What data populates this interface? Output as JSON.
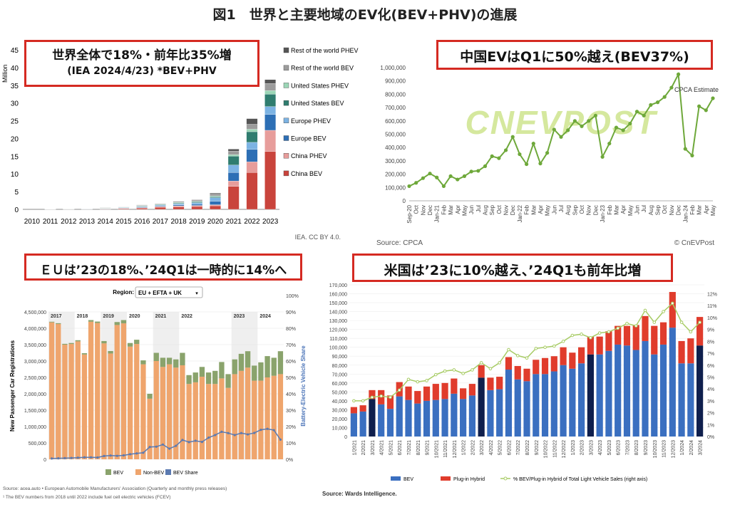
{
  "page_title": "図1　世界と主要地域のEV化(BEV+PHV)の進展",
  "callouts": {
    "world_line1": "世界全体で18%・前年比35%増",
    "world_line2": "(IEA 2024/4/23) *BEV+PHV",
    "china": "中国EVはQ1に50%越え(BEV37%)",
    "eu": "ＥＵは’23の18%、’24Q1は一時的に14%へ",
    "us": "米国は’23に10%越え、’24Q1も前年比増"
  },
  "colors": {
    "china_bev": "#c9443c",
    "china_phev": "#e79d9b",
    "eu_bev": "#2d6fb5",
    "eu_phev": "#7cb3e3",
    "us_bev": "#2f7d6f",
    "us_phev": "#9bd6b6",
    "row_bev": "#9c9c9c",
    "row_phev": "#555555",
    "cnev_line": "#6ea83a",
    "eu_green": "#8aa36c",
    "eu_orange": "#efa56d",
    "eu_blue": "#5b7ab1",
    "us_blue": "#3a6fc0",
    "us_navy": "#0f1f4d",
    "us_red": "#e03c2c",
    "us_line": "#a8cc66"
  },
  "chart_data": [
    {
      "type": "bar",
      "stacked": true,
      "categories": [
        "2010",
        "2011",
        "2012",
        "2013",
        "2014",
        "2015",
        "2016",
        "2017",
        "2018",
        "2019",
        "2020",
        "2021",
        "2022",
        "2023"
      ],
      "ylabel": "Million",
      "ylim": [
        0,
        45
      ],
      "yticks": [
        "0",
        "5",
        "10",
        "15",
        "20",
        "25",
        "30",
        "35",
        "40",
        "45"
      ],
      "source_note": "IEA. CC BY 4.0.",
      "series": [
        {
          "name": "China BEV",
          "values": [
            0,
            0,
            0.01,
            0.02,
            0.1,
            0.2,
            0.35,
            0.6,
            0.7,
            0.8,
            1.0,
            6.5,
            10.4,
            16.3
          ]
        },
        {
          "name": "China PHEV",
          "values": [
            0,
            0,
            0,
            0.01,
            0.05,
            0.1,
            0.15,
            0.2,
            0.3,
            0.3,
            0.3,
            1.5,
            3.0,
            6.0
          ]
        },
        {
          "name": "Europe BEV",
          "values": [
            0,
            0.01,
            0.02,
            0.03,
            0.05,
            0.1,
            0.15,
            0.2,
            0.25,
            0.35,
            1.0,
            2.4,
            3.5,
            4.5
          ]
        },
        {
          "name": "Europe PHEV",
          "values": [
            0,
            0.01,
            0.02,
            0.03,
            0.05,
            0.1,
            0.15,
            0.2,
            0.35,
            0.45,
            1.0,
            2.1,
            2.0,
            2.2
          ]
        },
        {
          "name": "United States BEV",
          "values": [
            0,
            0.01,
            0.02,
            0.05,
            0.1,
            0.1,
            0.15,
            0.15,
            0.2,
            0.25,
            0.3,
            2.5,
            3.0,
            3.5
          ]
        },
        {
          "name": "United States PHEV",
          "values": [
            0,
            0.01,
            0.02,
            0.02,
            0.05,
            0.05,
            0.1,
            0.1,
            0.15,
            0.15,
            0.2,
            0.4,
            0.7,
            1.0
          ]
        },
        {
          "name": "Rest of the world BEV",
          "values": [
            0,
            0,
            0.02,
            0.02,
            0.05,
            0.08,
            0.1,
            0.1,
            0.15,
            0.2,
            0.5,
            1.0,
            1.4,
            2.0
          ]
        },
        {
          "name": "Rest of the world PHEV",
          "values": [
            0,
            0,
            0.01,
            0.01,
            0.05,
            0.05,
            0.1,
            0.1,
            0.15,
            0.2,
            0.3,
            0.6,
            1.6,
            1.1
          ]
        }
      ]
    },
    {
      "type": "line",
      "x": [
        "Sep-20",
        "Oct",
        "Nov",
        "Dec",
        "Jan-21",
        "Feb",
        "Mar",
        "Apr",
        "May",
        "Jun",
        "Jul",
        "Aug",
        "Sep",
        "Oct",
        "Nov",
        "Dec",
        "Jan-22",
        "Feb",
        "Mar",
        "Apr",
        "May",
        "Jun",
        "Jul",
        "Aug",
        "Sep",
        "Oct",
        "Nov",
        "Dec",
        "Jan-23",
        "Feb",
        "Mar",
        "Apr",
        "May",
        "Jun",
        "Jul",
        "Aug",
        "Sep",
        "Oct",
        "Nov",
        "Dec",
        "Jan-24",
        "Feb",
        "Mar",
        "Apr",
        "May"
      ],
      "y": [
        110000,
        135000,
        170000,
        205000,
        175000,
        110000,
        185000,
        160000,
        185000,
        220000,
        225000,
        260000,
        335000,
        320000,
        380000,
        480000,
        350000,
        275000,
        430000,
        280000,
        360000,
        535000,
        480000,
        530000,
        600000,
        560000,
        600000,
        640000,
        330000,
        430000,
        550000,
        530000,
        580000,
        670000,
        640000,
        720000,
        740000,
        780000,
        850000,
        950000,
        390000,
        340000,
        710000,
        680000,
        770000
      ],
      "ylim": [
        0,
        1000000
      ],
      "yticks": [
        "0",
        "100,000",
        "200,000",
        "300,000",
        "400,000",
        "500,000",
        "600,000",
        "700,000",
        "800,000",
        "900,000",
        "1,000,000"
      ],
      "annotation": "CPCA Estimate",
      "watermark": "CNEVPOST",
      "source": "Source: CPCA",
      "credit": "© CnEVPost"
    },
    {
      "type": "bar",
      "stacked": true,
      "region_label": "Region:",
      "region_value": "EU + EFTA + UK",
      "years": [
        "2017",
        "2018",
        "2019",
        "2020",
        "2021",
        "2022",
        "2023",
        "2024"
      ],
      "ylabel": "New Passenger Car Registrations",
      "y2label": "Battery-Electric Vehicle Share",
      "yticks": [
        "0",
        "500,000",
        "1,000,000",
        "1,500,000",
        "2,000,000",
        "2,500,000",
        "3,000,000",
        "3,500,000",
        "4,000,000",
        "4,500,000"
      ],
      "y2ticks": [
        "0%",
        "10%",
        "20%",
        "30%",
        "40%",
        "50%",
        "60%",
        "70%",
        "80%",
        "90%",
        "100%"
      ],
      "ylim": [
        0,
        4500000
      ],
      "series": [
        {
          "name": "BEV",
          "values": [
            20000,
            25000,
            25000,
            30000,
            35000,
            40000,
            50000,
            45000,
            70000,
            75000,
            90000,
            100000,
            110000,
            130000,
            120000,
            150000,
            250000,
            280000,
            200000,
            250000,
            380000,
            270000,
            300000,
            300000,
            350000,
            400000,
            500000,
            420000,
            450000,
            520000,
            500000,
            460000,
            560000,
            650000,
            550000,
            700000
          ]
        },
        {
          "name": "Non-BEV",
          "values": [
            4180000,
            4130000,
            3500000,
            3520000,
            3600000,
            3200000,
            4200000,
            4160000,
            3540000,
            3230000,
            4100000,
            4150000,
            3440000,
            3520000,
            2900000,
            1850000,
            3000000,
            2820000,
            2900000,
            2800000,
            2870000,
            2300000,
            2350000,
            2520000,
            2300000,
            2300000,
            2470000,
            2180000,
            2600000,
            2700000,
            2800000,
            2400000,
            2400000,
            2500000,
            2550000,
            2600000
          ]
        },
        {
          "name": "BEV Share",
          "values": [
            0.5,
            0.6,
            0.7,
            0.8,
            1.0,
            1.2,
            1.2,
            1.1,
            2.0,
            2.3,
            2.1,
            2.4,
            3.1,
            3.6,
            4.0,
            7.5,
            7.7,
            9.0,
            6.5,
            8.2,
            11.8,
            10.5,
            11.3,
            10.6,
            13.2,
            14.8,
            16.8,
            16.0,
            14.8,
            16.0,
            15.2,
            16.1,
            18.0,
            18.6,
            17.8,
            12.0
          ]
        }
      ],
      "source": "Source: acea.auto • European Automobile Manufacturers' Association (Quarterly and monthly press releases)",
      "footnote": "¹ The BEV numbers from 2018 until 2022 include fuel cell electric vehicles (FCEV)"
    },
    {
      "type": "bar",
      "stacked": true,
      "categories": [
        "1/2021",
        "2/2021",
        "3/2021",
        "4/2021",
        "5/2021",
        "6/2021",
        "7/2021",
        "8/2021",
        "9/2021",
        "10/2021",
        "11/2021",
        "12/2021",
        "1/2022",
        "2/2022",
        "3/2022",
        "4/2022",
        "5/2022",
        "6/2022",
        "7/2022",
        "8/2022",
        "9/2022",
        "10/2022",
        "11/2022",
        "12/2022",
        "1/2023",
        "2/2023",
        "3/2023",
        "4/2023",
        "5/2023",
        "6/2023",
        "7/2023",
        "8/2023",
        "9/2023",
        "10/2023",
        "11/2023",
        "12/2023",
        "1/2024",
        "2/2024",
        "3/2024"
      ],
      "ylim": [
        0,
        170000
      ],
      "yticks": [
        "0",
        "10,000",
        "20,000",
        "30,000",
        "40,000",
        "50,000",
        "60,000",
        "70,000",
        "80,000",
        "90,000",
        "100,000",
        "110,000",
        "120,000",
        "130,000",
        "140,000",
        "150,000",
        "160,000",
        "170,000"
      ],
      "y2ticks": [
        "0%",
        "1%",
        "2%",
        "3%",
        "4%",
        "5%",
        "6%",
        "7%",
        "8%",
        "9%",
        "10%",
        "11%",
        "12%"
      ],
      "series": [
        {
          "name": "BEV",
          "values": [
            26000,
            28000,
            42000,
            36000,
            31000,
            45000,
            41000,
            37000,
            40000,
            41000,
            42000,
            48000,
            42000,
            46000,
            66000,
            52000,
            53000,
            75000,
            64000,
            62000,
            70000,
            70000,
            73000,
            80000,
            76000,
            82000,
            92000,
            92000,
            96000,
            103000,
            102000,
            97000,
            107000,
            92000,
            103000,
            122000,
            82000,
            82000,
            102000
          ]
        },
        {
          "name": "Plug-in Hybrid",
          "values": [
            7000,
            7000,
            10000,
            16000,
            15000,
            16000,
            15000,
            14000,
            16000,
            18000,
            18000,
            17000,
            12000,
            13000,
            14000,
            14000,
            14000,
            14000,
            15000,
            14000,
            16000,
            18000,
            17000,
            20000,
            18000,
            18000,
            20000,
            20000,
            22000,
            21000,
            22000,
            28000,
            28000,
            32000,
            25000,
            40000,
            25000,
            28000,
            32000
          ]
        },
        {
          "name": "% BEV/Plug-in Hybrid of Total Light Vehicle Sales (right axis)",
          "values": [
            3.0,
            3.0,
            3.3,
            3.4,
            3.3,
            3.9,
            4.8,
            4.6,
            4.7,
            5.2,
            5.5,
            5.6,
            5.3,
            5.6,
            6.2,
            5.7,
            6.2,
            7.3,
            6.8,
            6.6,
            7.4,
            7.5,
            7.6,
            8.0,
            8.5,
            8.6,
            8.3,
            8.7,
            8.8,
            9.1,
            9.5,
            9.3,
            10.6,
            9.6,
            10.5,
            11.2,
            9.6,
            8.8,
            9.6
          ]
        }
      ],
      "source": "Source: Wards Intelligence."
    }
  ]
}
